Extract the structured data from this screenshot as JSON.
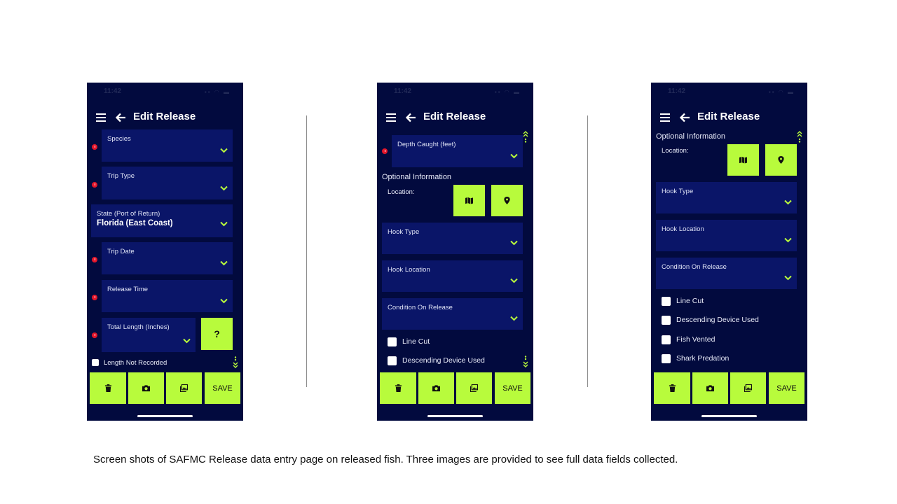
{
  "colors": {
    "background": "#020a3e",
    "field": "#0a1568",
    "accent": "#b8fb3c",
    "error": "#e3162a"
  },
  "status_time": "11:42",
  "header": {
    "title": "Edit Release",
    "menu_icon": "hamburger-icon",
    "back_icon": "arrow-left-icon"
  },
  "screen1": {
    "fields": [
      {
        "label": "Species",
        "value": "",
        "required": true
      },
      {
        "label": "Trip Type",
        "value": "",
        "required": true
      },
      {
        "label": "State (Port of Return)",
        "value": "Florida (East Coast)",
        "required": false
      },
      {
        "label": "Trip Date",
        "value": "",
        "required": true
      },
      {
        "label": "Release Time",
        "value": "",
        "required": true
      },
      {
        "label": "Total Length (Inches)",
        "value": "",
        "required": true
      }
    ],
    "help_button": "?",
    "length_not_recorded": {
      "label": "Length Not Recorded",
      "checked": false
    }
  },
  "screen2": {
    "depth": {
      "label": "Depth Caught (feet)",
      "value": "",
      "required": true
    },
    "optional_title": "Optional Information",
    "location_label": "Location:",
    "fields": [
      {
        "label": "Hook Type"
      },
      {
        "label": "Hook Location"
      },
      {
        "label": "Condition On Release"
      }
    ],
    "checkboxes": [
      {
        "label": "Line Cut",
        "checked": false
      },
      {
        "label": "Descending Device Used",
        "checked": false
      }
    ]
  },
  "screen3": {
    "optional_title": "Optional Information",
    "location_label": "Location:",
    "fields": [
      {
        "label": "Hook Type"
      },
      {
        "label": "Hook Location"
      },
      {
        "label": "Condition On Release"
      }
    ],
    "checkboxes": [
      {
        "label": "Line Cut",
        "checked": false
      },
      {
        "label": "Descending Device Used",
        "checked": false
      },
      {
        "label": "Fish Vented",
        "checked": false
      },
      {
        "label": "Shark Predation",
        "checked": false
      }
    ]
  },
  "toolbar": {
    "delete_icon": "trash-icon",
    "camera_icon": "camera-icon",
    "gallery_icon": "images-icon",
    "save_label": "SAVE"
  },
  "caption": "Screen shots of SAFMC Release  data entry page on released fish. Three images are provided to see full data fields collected."
}
